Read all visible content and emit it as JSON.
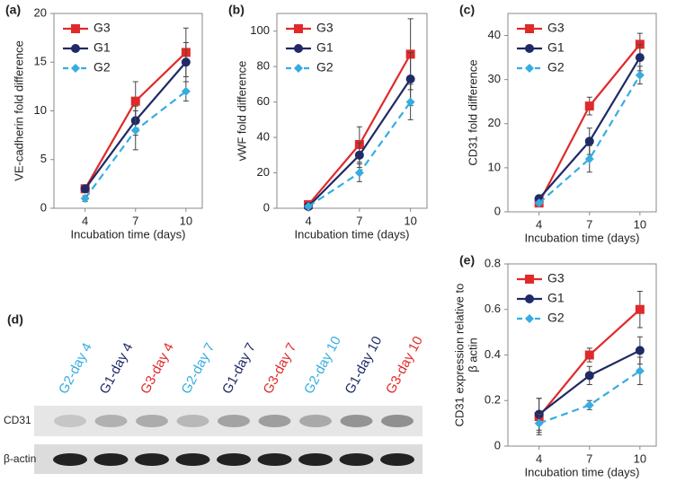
{
  "chart_data": [
    {
      "type": "line",
      "label": "(a)",
      "ylabel": [
        "VE-cadherin fold difference"
      ],
      "xlabel": "Incubation time (days)",
      "categories": [
        "4",
        "7",
        "10"
      ],
      "ylim": [
        0,
        20
      ],
      "yticks": [
        0,
        5,
        10,
        15,
        20
      ],
      "series": [
        {
          "name": "G3",
          "color": "#e02a2a",
          "marker": "square",
          "dashed": false,
          "values": [
            2,
            11,
            16
          ],
          "errors": [
            0.3,
            2,
            2.5
          ]
        },
        {
          "name": "G1",
          "color": "#1f2a66",
          "marker": "circle",
          "dashed": false,
          "values": [
            2,
            9,
            15
          ],
          "errors": [
            0.3,
            1.5,
            2
          ]
        },
        {
          "name": "G2",
          "color": "#35ade0",
          "marker": "diamond",
          "dashed": true,
          "values": [
            1,
            8,
            12
          ],
          "errors": [
            0.3,
            2,
            1
          ]
        }
      ]
    },
    {
      "type": "line",
      "label": "(b)",
      "ylabel": [
        "vWF fold difference"
      ],
      "xlabel": "Incubation time (days)",
      "categories": [
        "4",
        "7",
        "10"
      ],
      "ylim": [
        0,
        110
      ],
      "yticks": [
        0,
        20,
        40,
        60,
        80,
        100
      ],
      "series": [
        {
          "name": "G3",
          "color": "#e02a2a",
          "marker": "square",
          "dashed": false,
          "values": [
            2,
            36,
            87
          ],
          "errors": [
            1,
            10,
            20
          ]
        },
        {
          "name": "G1",
          "color": "#1f2a66",
          "marker": "circle",
          "dashed": false,
          "values": [
            1,
            30,
            73
          ],
          "errors": [
            1,
            7,
            15
          ]
        },
        {
          "name": "G2",
          "color": "#35ade0",
          "marker": "diamond",
          "dashed": true,
          "values": [
            1,
            20,
            60
          ],
          "errors": [
            1,
            5,
            10
          ]
        }
      ]
    },
    {
      "type": "line",
      "label": "(c)",
      "ylabel": [
        "CD31  fold difference"
      ],
      "xlabel": "Incubation time (days)",
      "categories": [
        "4",
        "7",
        "10"
      ],
      "ylim": [
        0,
        45
      ],
      "yticks": [
        0,
        10,
        20,
        30,
        40
      ],
      "series": [
        {
          "name": "G3",
          "color": "#e02a2a",
          "marker": "square",
          "dashed": false,
          "values": [
            2,
            24,
            38
          ],
          "errors": [
            0.5,
            2,
            2.5
          ]
        },
        {
          "name": "G1",
          "color": "#1f2a66",
          "marker": "circle",
          "dashed": false,
          "values": [
            3,
            16,
            35
          ],
          "errors": [
            0.5,
            3,
            3
          ]
        },
        {
          "name": "G2",
          "color": "#35ade0",
          "marker": "diamond",
          "dashed": true,
          "values": [
            2,
            12,
            31
          ],
          "errors": [
            0.5,
            3,
            2
          ]
        }
      ]
    },
    {
      "type": "line",
      "label": "(e)",
      "ylabel": [
        "CD31 expression relative to",
        "β actin"
      ],
      "xlabel": "Incubation time (days)",
      "categories": [
        "4",
        "7",
        "10"
      ],
      "ylim": [
        0,
        0.8
      ],
      "yticks": [
        0,
        0.2,
        0.4,
        0.6,
        0.8
      ],
      "series": [
        {
          "name": "G3",
          "color": "#e02a2a",
          "marker": "square",
          "dashed": false,
          "values": [
            0.13,
            0.4,
            0.6
          ],
          "errors": [
            0.08,
            0.03,
            0.08
          ]
        },
        {
          "name": "G1",
          "color": "#1f2a66",
          "marker": "circle",
          "dashed": false,
          "values": [
            0.14,
            0.31,
            0.42
          ],
          "errors": [
            0.07,
            0.04,
            0.06
          ]
        },
        {
          "name": "G2",
          "color": "#35ade0",
          "marker": "diamond",
          "dashed": true,
          "values": [
            0.1,
            0.18,
            0.33
          ],
          "errors": [
            0.04,
            0.02,
            0.06
          ]
        }
      ]
    }
  ],
  "blot": {
    "label": "(d)",
    "lanes": [
      "G2-day 4",
      "G1-day 4",
      "G3-day 4",
      "G2-day 7",
      "G1-day 7",
      "G3-day 7",
      "G2-day 10",
      "G1-day 10",
      "G3-day 10"
    ],
    "lane_colors": [
      "#35ade0",
      "#1f2a66",
      "#e02a2a",
      "#35ade0",
      "#1f2a66",
      "#e02a2a",
      "#35ade0",
      "#1f2a66",
      "#e02a2a"
    ],
    "rows": [
      "CD31",
      "β-actin"
    ]
  }
}
